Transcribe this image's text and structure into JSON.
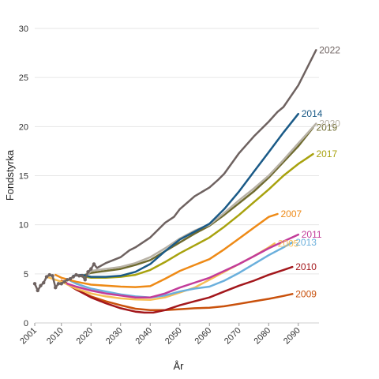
{
  "chart_data": {
    "type": "line",
    "xlabel": "År",
    "ylabel": "Fondstyrka",
    "xlim": [
      2001,
      2097
    ],
    "ylim": [
      0,
      30
    ],
    "x_ticks": [
      "2001",
      "2010",
      "2020",
      "2030",
      "2040",
      "2050",
      "2060",
      "2070",
      "2080",
      "2090"
    ],
    "y_ticks": [
      "0",
      "5",
      "10",
      "15",
      "20",
      "25",
      "30"
    ],
    "grid": "horizontal",
    "series": [
      {
        "name": "2009",
        "color": "#c9510c",
        "x": [
          2010,
          2015,
          2020,
          2025,
          2030,
          2035,
          2040,
          2045,
          2050,
          2055,
          2060,
          2065,
          2070,
          2075,
          2080,
          2085,
          2088
        ],
        "y": [
          4.3,
          3.4,
          2.7,
          2.2,
          1.8,
          1.45,
          1.3,
          1.3,
          1.4,
          1.5,
          1.55,
          1.7,
          1.95,
          2.2,
          2.45,
          2.75,
          2.95
        ]
      },
      {
        "name": "2010",
        "color": "#a3171c",
        "x": [
          2011,
          2015,
          2020,
          2025,
          2030,
          2035,
          2038,
          2041,
          2045,
          2050,
          2055,
          2060,
          2065,
          2070,
          2075,
          2080,
          2085,
          2088
        ],
        "y": [
          4.2,
          3.4,
          2.6,
          2.0,
          1.5,
          1.15,
          1.05,
          1.05,
          1.3,
          1.8,
          2.2,
          2.6,
          3.2,
          3.8,
          4.3,
          4.9,
          5.4,
          5.7
        ]
      },
      {
        "name": "2005",
        "color": "#f7be56",
        "x": [
          2005,
          2010,
          2015,
          2020,
          2025,
          2030,
          2035,
          2040,
          2045,
          2050,
          2055,
          2060,
          2065,
          2070,
          2075,
          2080,
          2082
        ],
        "y": [
          4.7,
          4.2,
          3.5,
          3.0,
          2.7,
          2.5,
          2.4,
          2.35,
          2.6,
          3.1,
          3.6,
          4.4,
          5.2,
          6.0,
          6.8,
          7.7,
          8.1
        ]
      },
      {
        "name": "2013",
        "color": "#6aafdc",
        "x": [
          2013,
          2015,
          2020,
          2025,
          2030,
          2035,
          2040,
          2045,
          2050,
          2055,
          2060,
          2065,
          2070,
          2075,
          2080,
          2085,
          2088
        ],
        "y": [
          4.3,
          4.0,
          3.5,
          3.2,
          2.9,
          2.7,
          2.6,
          2.8,
          3.2,
          3.5,
          3.7,
          4.3,
          5.1,
          6.0,
          6.9,
          7.7,
          8.2
        ]
      },
      {
        "name": "2011",
        "color": "#c23c9a",
        "x": [
          2012,
          2015,
          2020,
          2025,
          2030,
          2035,
          2040,
          2045,
          2050,
          2055,
          2060,
          2065,
          2070,
          2075,
          2080,
          2085,
          2090
        ],
        "y": [
          4.0,
          3.7,
          3.3,
          3.0,
          2.8,
          2.6,
          2.6,
          3.0,
          3.6,
          4.1,
          4.6,
          5.3,
          6.0,
          6.8,
          7.6,
          8.3,
          9.0
        ]
      },
      {
        "name": "2007",
        "color": "#ee8a16",
        "x": [
          2008,
          2010,
          2015,
          2020,
          2025,
          2030,
          2035,
          2040,
          2045,
          2050,
          2055,
          2060,
          2065,
          2070,
          2075,
          2080,
          2083
        ],
        "y": [
          4.9,
          4.6,
          4.2,
          3.9,
          3.8,
          3.7,
          3.65,
          3.75,
          4.5,
          5.3,
          5.9,
          6.5,
          7.5,
          8.6,
          9.7,
          10.8,
          11.1
        ]
      },
      {
        "name": "2017",
        "color": "#a8a20e",
        "x": [
          2016,
          2020,
          2025,
          2030,
          2035,
          2040,
          2045,
          2050,
          2055,
          2060,
          2065,
          2070,
          2075,
          2080,
          2085,
          2090,
          2095
        ],
        "y": [
          4.8,
          4.6,
          4.6,
          4.7,
          4.9,
          5.4,
          6.2,
          7.1,
          7.9,
          8.7,
          9.8,
          11.0,
          12.3,
          13.6,
          15.0,
          16.2,
          17.2
        ]
      },
      {
        "name": "2019",
        "color": "#6e6a2e",
        "x": [
          2018,
          2020,
          2025,
          2030,
          2035,
          2040,
          2045,
          2050,
          2055,
          2060,
          2065,
          2070,
          2075,
          2080,
          2085,
          2090,
          2095
        ],
        "y": [
          4.9,
          5.1,
          5.3,
          5.5,
          5.9,
          6.4,
          7.3,
          8.2,
          9.1,
          9.9,
          11.0,
          12.2,
          13.4,
          14.8,
          16.4,
          18.0,
          19.9
        ]
      },
      {
        "name": "2020",
        "color": "#b8b2a6",
        "x": [
          2019,
          2020,
          2025,
          2030,
          2035,
          2040,
          2045,
          2050,
          2055,
          2060,
          2065,
          2070,
          2075,
          2080,
          2085,
          2090,
          2096
        ],
        "y": [
          5.0,
          5.3,
          5.5,
          5.7,
          6.1,
          6.7,
          7.6,
          8.6,
          9.4,
          10.0,
          11.2,
          12.5,
          13.7,
          15.0,
          16.6,
          18.3,
          20.3
        ]
      },
      {
        "name": "2014",
        "color": "#1a5a87",
        "x": [
          2014,
          2017,
          2020,
          2025,
          2030,
          2035,
          2040,
          2045,
          2050,
          2055,
          2060,
          2065,
          2070,
          2075,
          2080,
          2085,
          2090
        ],
        "y": [
          4.8,
          4.9,
          4.7,
          4.7,
          4.8,
          5.2,
          6.0,
          7.3,
          8.5,
          9.3,
          10.1,
          11.6,
          13.4,
          15.4,
          17.4,
          19.4,
          21.3
        ]
      },
      {
        "name": "2022",
        "color": "#6e6260",
        "x": [
          2001,
          2002,
          2003,
          2004,
          2005,
          2006,
          2007,
          2008,
          2009,
          2010,
          2011,
          2012,
          2013,
          2014,
          2015,
          2016,
          2017,
          2018,
          2019,
          2020,
          2021,
          2022,
          2025,
          2030,
          2033,
          2035,
          2040,
          2045,
          2048,
          2050,
          2055,
          2060,
          2063,
          2065,
          2070,
          2075,
          2080,
          2083,
          2085,
          2090,
          2096
        ],
        "y": [
          4.0,
          3.3,
          3.8,
          4.1,
          4.7,
          4.9,
          4.8,
          3.6,
          4.0,
          4.0,
          4.2,
          4.4,
          4.5,
          4.7,
          4.9,
          4.8,
          4.8,
          4.4,
          5.2,
          5.5,
          6.0,
          5.6,
          6.1,
          6.7,
          7.4,
          7.7,
          8.7,
          10.2,
          10.8,
          11.6,
          12.9,
          13.8,
          14.6,
          15.2,
          17.3,
          19.0,
          20.5,
          21.5,
          22.0,
          24.2,
          27.8
        ]
      }
    ],
    "label_colors": {
      "axis": "#333333",
      "grid": "#e6e6e6"
    }
  }
}
